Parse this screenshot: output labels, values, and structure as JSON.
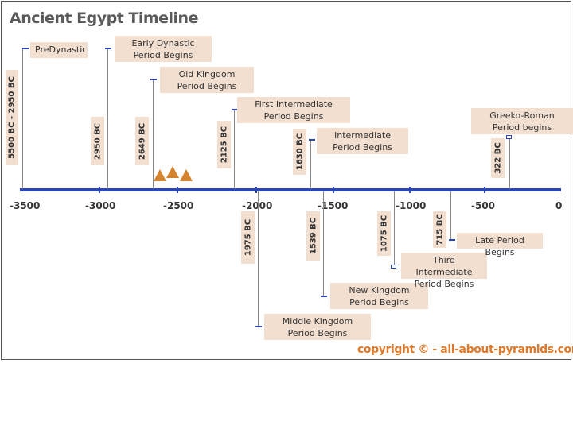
{
  "title": "Ancient Egypt Timeline",
  "axis": {
    "ticks": [
      "-3500",
      "-3000",
      "-2500",
      "-2000",
      "-1500",
      "-1000",
      "-500",
      "0"
    ]
  },
  "events": [
    {
      "label": "PreDynastic",
      "date": "5500 BC - 2950 BC"
    },
    {
      "label": "Early Dynastic Period Begins",
      "date": "2950 BC"
    },
    {
      "label": "Old Kingdom Period Begins",
      "date": "2649 BC"
    },
    {
      "label": "First Intermediate Period Begins",
      "date": "2125 BC"
    },
    {
      "label": "Intermediate Period Begins",
      "date": "1630 BC"
    },
    {
      "label": "Greeko-Roman Period begins",
      "date": "322 BC"
    },
    {
      "label": "Middle Kingdom Period Begins",
      "date": "1975 BC"
    },
    {
      "label": "New Kingdom Period Begins",
      "date": "1539 BC"
    },
    {
      "label": "Third Intermediate Period Begins",
      "date": "1075 BC"
    },
    {
      "label": "Late Period Begins",
      "date": "715 BC"
    }
  ],
  "copyright": "copyright © - all-about-pyramids.com",
  "colors": {
    "axis": "#2a45b8",
    "label_bg": "#f2dfd0",
    "pyramid": "#d4832e",
    "copyright": "#e07a2a"
  }
}
